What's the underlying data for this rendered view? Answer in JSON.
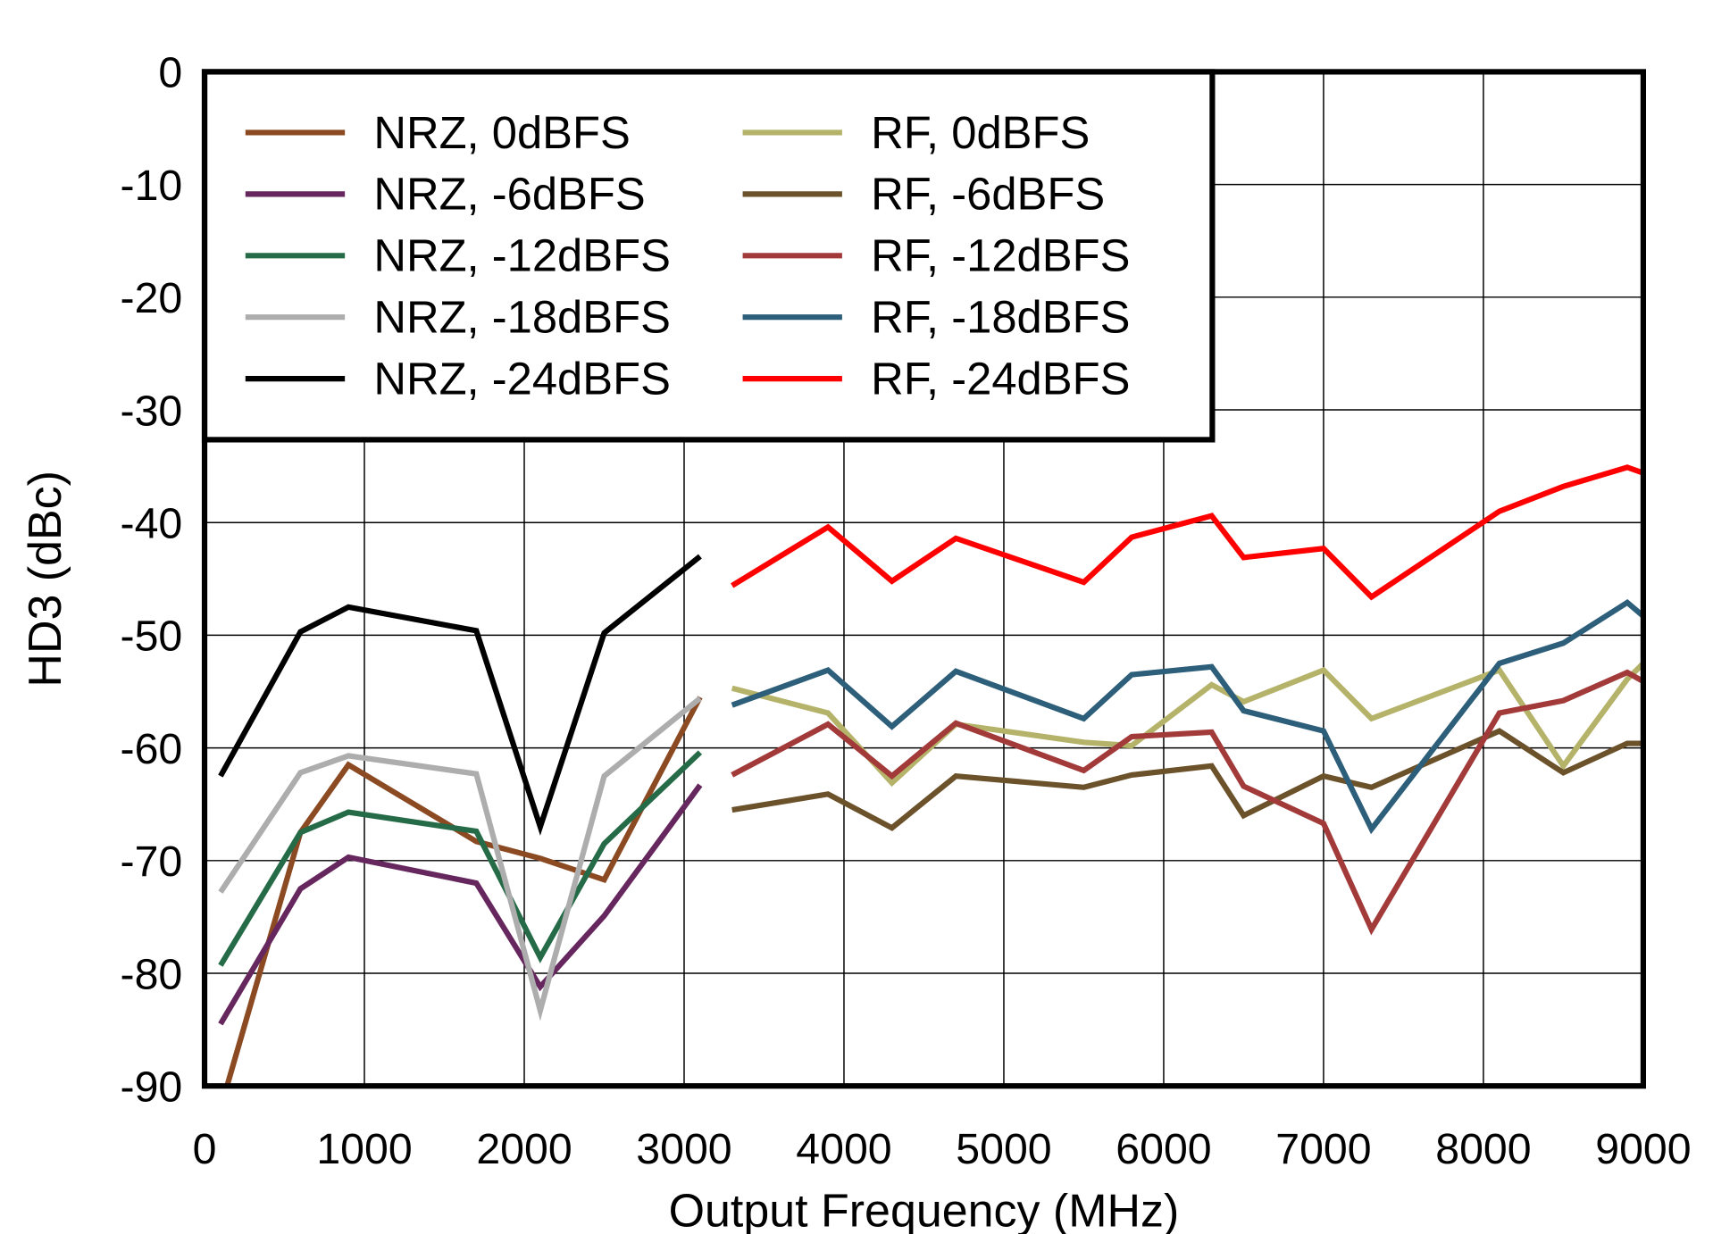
{
  "chart_data": {
    "type": "line",
    "title": "",
    "xlabel": "Output Frequency (MHz)",
    "ylabel": "HD3 (dBc)",
    "xlim": [
      0,
      9000
    ],
    "ylim": [
      -90,
      0
    ],
    "xticks": [
      "0",
      "1000",
      "2000",
      "3000",
      "4000",
      "5000",
      "6000",
      "7000",
      "8000",
      "9000"
    ],
    "yticks": [
      "0",
      "-10",
      "-20",
      "-30",
      "-40",
      "-50",
      "-60",
      "-70",
      "-80",
      "-90"
    ],
    "grid": true,
    "legend_placement": "top-left",
    "series": [
      {
        "name": "NRZ, 0dBFS",
        "color": "#8B4A22",
        "x": [
          100,
          600,
          900,
          1700,
          2100,
          2500,
          3100
        ],
        "y": [
          -92,
          -67.5,
          -61.5,
          -68.3,
          -69.8,
          -71.7,
          -55.5
        ]
      },
      {
        "name": "NRZ, -6dBFS",
        "color": "#66265E",
        "x": [
          100,
          600,
          900,
          1700,
          2100,
          2500,
          3100
        ],
        "y": [
          -84.5,
          -72.5,
          -69.7,
          -72,
          -81.2,
          -74.9,
          -63.3
        ]
      },
      {
        "name": "NRZ, -12dBFS",
        "color": "#266B47",
        "x": [
          100,
          600,
          900,
          1700,
          2100,
          2500,
          3100
        ],
        "y": [
          -79.3,
          -67.5,
          -65.7,
          -67.4,
          -78.6,
          -68.5,
          -60.4
        ]
      },
      {
        "name": "NRZ, -18dBFS",
        "color": "#ADADAD",
        "x": [
          100,
          600,
          900,
          1700,
          2100,
          2500,
          3100
        ],
        "y": [
          -72.8,
          -62.2,
          -60.7,
          -62.3,
          -83.3,
          -62.5,
          -55.6
        ]
      },
      {
        "name": "NRZ, -24dBFS",
        "color": "#000000",
        "x": [
          100,
          600,
          900,
          1700,
          2100,
          2500,
          3100
        ],
        "y": [
          -62.5,
          -49.7,
          -47.5,
          -49.6,
          -67,
          -49.8,
          -43
        ]
      },
      {
        "name": "RF, 0dBFS",
        "color": "#B5B36A",
        "x": [
          3300,
          3900,
          4300,
          4700,
          5500,
          5800,
          6300,
          6500,
          7000,
          7300,
          8100,
          8500,
          8900,
          9000
        ],
        "y": [
          -54.7,
          -56.9,
          -63.1,
          -57.9,
          -59.5,
          -59.8,
          -54.4,
          -55.9,
          -53.1,
          -57.4,
          -53.1,
          -61.6,
          -53.9,
          -52.5
        ]
      },
      {
        "name": "RF, -6dBFS",
        "color": "#6B522A",
        "x": [
          3300,
          3900,
          4300,
          4700,
          5500,
          5800,
          6300,
          6500,
          7000,
          7300,
          8100,
          8500,
          8900,
          9000
        ],
        "y": [
          -65.5,
          -64.1,
          -67.1,
          -62.5,
          -63.5,
          -62.4,
          -61.6,
          -66,
          -62.5,
          -63.5,
          -58.5,
          -62.2,
          -59.6,
          -59.6
        ]
      },
      {
        "name": "RF, -12dBFS",
        "color": "#A33A3A",
        "x": [
          3300,
          3900,
          4300,
          4700,
          5500,
          5800,
          6300,
          6500,
          7000,
          7300,
          8100,
          8500,
          8900,
          9000
        ],
        "y": [
          -62.4,
          -57.9,
          -62.5,
          -57.8,
          -62,
          -59,
          -58.6,
          -63.4,
          -66.7,
          -76.1,
          -56.9,
          -55.8,
          -53.3,
          -54.1
        ]
      },
      {
        "name": "RF, -18dBFS",
        "color": "#2D5E7A",
        "x": [
          3300,
          3900,
          4300,
          4700,
          5500,
          5800,
          6300,
          6500,
          7000,
          7300,
          8100,
          8500,
          8900,
          9000
        ],
        "y": [
          -56.2,
          -53.1,
          -58.1,
          -53.2,
          -57.4,
          -53.5,
          -52.8,
          -56.7,
          -58.5,
          -67.2,
          -52.5,
          -50.7,
          -47.1,
          -48.3
        ]
      },
      {
        "name": "RF, -24dBFS",
        "color": "#FF0000",
        "x": [
          3300,
          3900,
          4300,
          4700,
          5500,
          5800,
          6300,
          6500,
          7000,
          7300,
          8100,
          8500,
          8900,
          9000
        ],
        "y": [
          -45.6,
          -40.4,
          -45.2,
          -41.4,
          -45.3,
          -41.3,
          -39.4,
          -43.1,
          -42.3,
          -46.6,
          -39,
          -36.8,
          -35.1,
          -35.6
        ]
      }
    ]
  }
}
